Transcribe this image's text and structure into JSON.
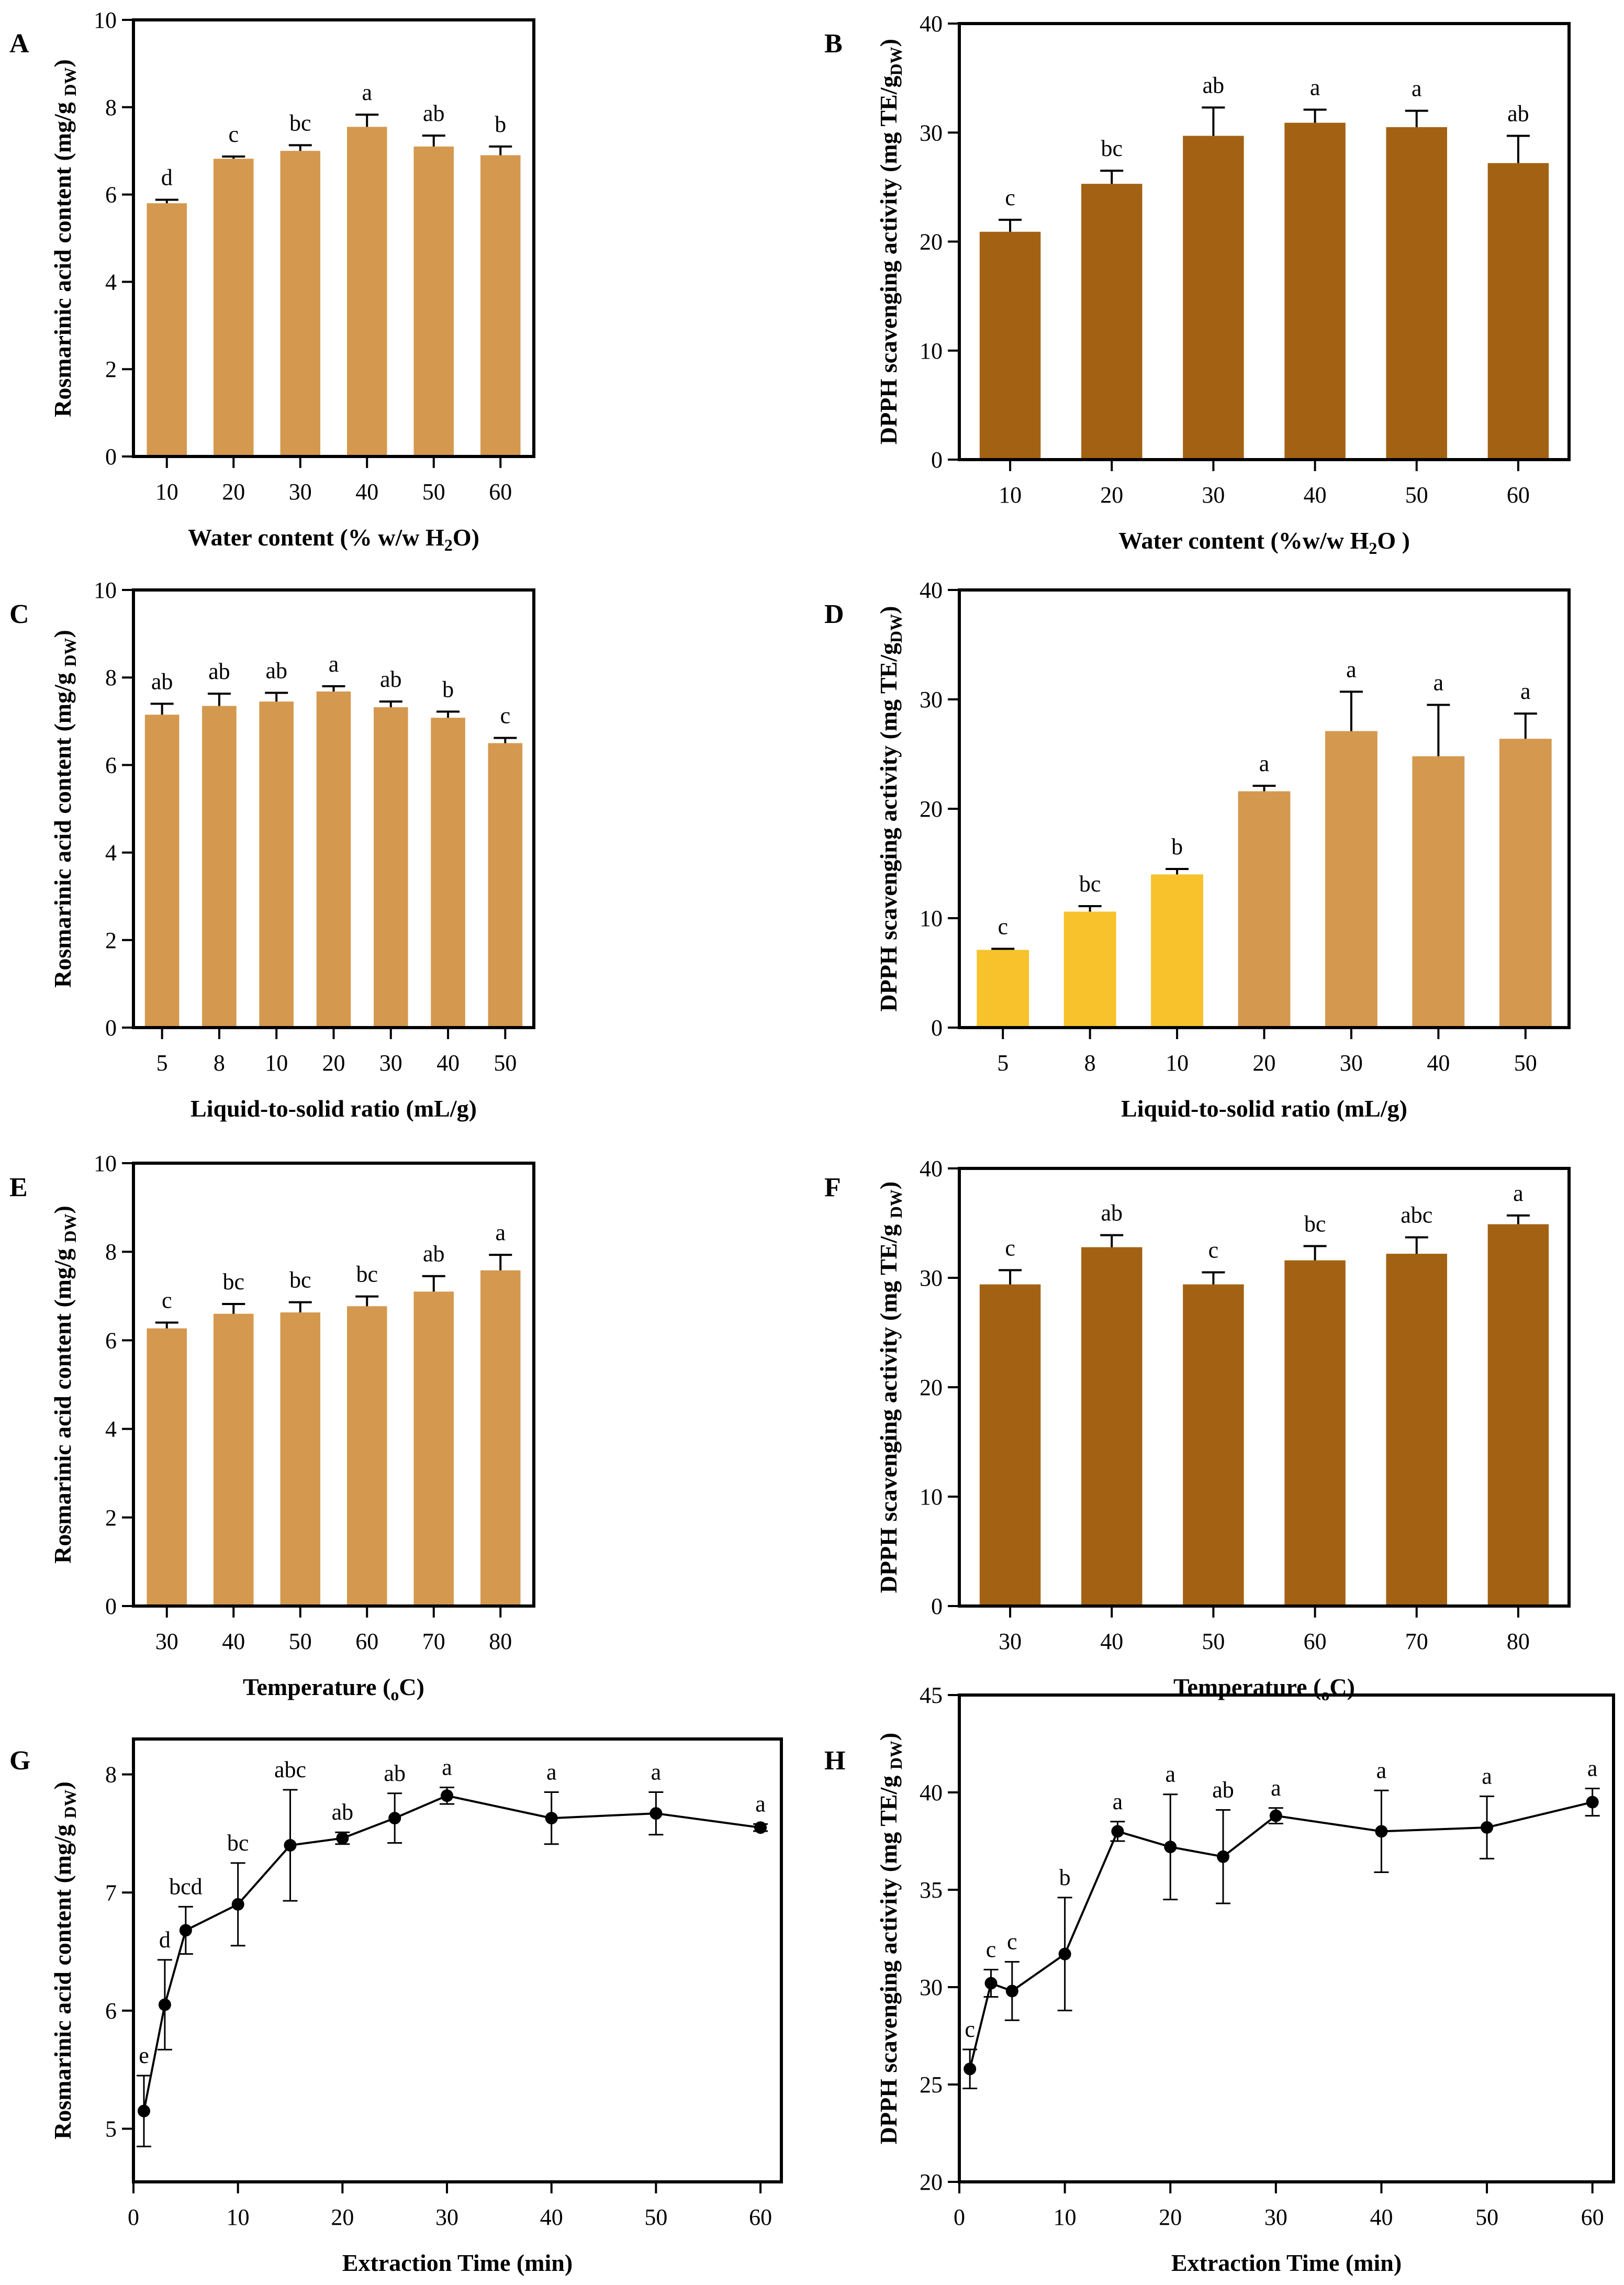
{
  "figure": {
    "colors": {
      "light_brown": "#D4984E",
      "dark_brown": "#A36213",
      "yellow": "#F7C22B",
      "line": "#000000"
    },
    "chart_data": [
      {
        "id": "A",
        "letter": "A",
        "type": "bar",
        "categories": [
          "10",
          "20",
          "30",
          "40",
          "50",
          "60"
        ],
        "values": [
          5.8,
          6.82,
          7.0,
          7.55,
          7.1,
          6.9
        ],
        "errors": [
          0.08,
          0.05,
          0.13,
          0.28,
          0.25,
          0.2
        ],
        "labels": [
          "d",
          "c",
          "bc",
          "a",
          "ab",
          "b"
        ],
        "bar_colors": [
          "light_brown",
          "light_brown",
          "light_brown",
          "light_brown",
          "light_brown",
          "light_brown"
        ],
        "title": "",
        "xlabel": [
          "Water content (% w/w H",
          "2",
          "O)"
        ],
        "ylabel": [
          "Rosmarinic acid content (mg/g ",
          "DW",
          ")"
        ],
        "ylim": [
          0,
          10
        ],
        "yticks": [
          0,
          2,
          4,
          6,
          8,
          10
        ],
        "yticklabels": [
          "0",
          "2",
          "4",
          "6",
          "8",
          "10"
        ]
      },
      {
        "id": "B",
        "letter": "B",
        "type": "bar",
        "categories": [
          "10",
          "20",
          "30",
          "40",
          "50",
          "60"
        ],
        "values": [
          20.9,
          25.3,
          29.7,
          30.9,
          30.5,
          27.2
        ],
        "errors": [
          1.1,
          1.2,
          2.6,
          1.2,
          1.5,
          2.5
        ],
        "labels": [
          "c",
          "bc",
          "ab",
          "a",
          "a",
          "ab"
        ],
        "bar_colors": [
          "dark_brown",
          "dark_brown",
          "dark_brown",
          "dark_brown",
          "dark_brown",
          "dark_brown"
        ],
        "title": "",
        "xlabel": [
          "Water content (%w/w H",
          "2",
          "O )"
        ],
        "ylabel": [
          "DPPH  scavenging activity (mg TE/g",
          "DW",
          ")"
        ],
        "ylim": [
          0,
          40
        ],
        "yticks": [
          0,
          10,
          20,
          30,
          40
        ],
        "yticklabels": [
          "0",
          "10",
          "20",
          "30",
          "40"
        ]
      },
      {
        "id": "C",
        "letter": "C",
        "type": "bar",
        "categories": [
          "5",
          "8",
          "10",
          "20",
          "30",
          "40",
          "50"
        ],
        "values": [
          7.15,
          7.35,
          7.45,
          7.68,
          7.32,
          7.08,
          6.5
        ],
        "errors": [
          0.25,
          0.28,
          0.2,
          0.12,
          0.13,
          0.14,
          0.12
        ],
        "labels": [
          "ab",
          "ab",
          "ab",
          "a",
          "ab",
          "b",
          "c"
        ],
        "bar_colors": [
          "light_brown",
          "light_brown",
          "light_brown",
          "light_brown",
          "light_brown",
          "light_brown",
          "light_brown"
        ],
        "title": "",
        "xlabel": [
          "Liquid-to-solid ratio (mL/g)",
          "",
          ""
        ],
        "ylabel": [
          "Rosmarinic acid content (mg/g ",
          "DW",
          ")"
        ],
        "ylim": [
          0,
          10
        ],
        "yticks": [
          0,
          2,
          4,
          6,
          8,
          10
        ],
        "yticklabels": [
          "0",
          "2",
          "4",
          "6",
          "8",
          "10"
        ]
      },
      {
        "id": "D",
        "letter": "D",
        "type": "bar",
        "categories": [
          "5",
          "8",
          "10",
          "20",
          "30",
          "40",
          "50"
        ],
        "values": [
          7.1,
          10.6,
          14.0,
          21.6,
          27.1,
          24.8,
          26.4
        ],
        "errors": [
          0.1,
          0.5,
          0.5,
          0.5,
          3.6,
          4.7,
          2.3
        ],
        "labels": [
          "c",
          "bc",
          "b",
          "a",
          "a",
          "a",
          "a"
        ],
        "bar_colors": [
          "yellow",
          "yellow",
          "yellow",
          "light_brown",
          "light_brown",
          "light_brown",
          "light_brown"
        ],
        "title": "",
        "xlabel": [
          "Liquid-to-solid ratio (mL/g)",
          "",
          ""
        ],
        "ylabel": [
          "DPPH  scavenging activity (mg TE/g",
          "DW",
          ")"
        ],
        "ylim": [
          0,
          40
        ],
        "yticks": [
          0,
          10,
          20,
          30,
          40
        ],
        "yticklabels": [
          "0",
          "10",
          "20",
          "30",
          "40"
        ]
      },
      {
        "id": "E",
        "letter": "E",
        "type": "bar",
        "categories": [
          "30",
          "40",
          "50",
          "60",
          "70",
          "80"
        ],
        "values": [
          6.27,
          6.6,
          6.63,
          6.77,
          7.1,
          7.58
        ],
        "errors": [
          0.13,
          0.22,
          0.23,
          0.22,
          0.35,
          0.35
        ],
        "labels": [
          "c",
          "bc",
          "bc",
          "bc",
          "ab",
          "a"
        ],
        "bar_colors": [
          "light_brown",
          "light_brown",
          "light_brown",
          "light_brown",
          "light_brown",
          "light_brown"
        ],
        "title": "",
        "xlabel": [
          "Temperature (",
          "o",
          "C)"
        ],
        "ylabel": [
          "Rosmarinic acid content (mg/g ",
          "DW",
          ")"
        ],
        "ylim": [
          0,
          10
        ],
        "yticks": [
          0,
          2,
          4,
          6,
          8,
          10
        ],
        "yticklabels": [
          "0",
          "2",
          "4",
          "6",
          "8",
          "10"
        ]
      },
      {
        "id": "F",
        "letter": "F",
        "type": "bar",
        "categories": [
          "30",
          "40",
          "50",
          "60",
          "70",
          "80"
        ],
        "values": [
          29.4,
          32.8,
          29.4,
          31.6,
          32.2,
          34.9
        ],
        "errors": [
          1.3,
          1.1,
          1.1,
          1.3,
          1.5,
          0.8
        ],
        "labels": [
          "c",
          "ab",
          "c",
          "bc",
          "abc",
          "a"
        ],
        "bar_colors": [
          "dark_brown",
          "dark_brown",
          "dark_brown",
          "dark_brown",
          "dark_brown",
          "dark_brown"
        ],
        "title": "",
        "xlabel": [
          "Temperature (",
          "o",
          "C)"
        ],
        "ylabel": [
          "DPPH  scavenging activity (mg TE/g ",
          "DW",
          ")"
        ],
        "ylim": [
          0,
          40
        ],
        "yticks": [
          0,
          10,
          20,
          30,
          40
        ],
        "yticklabels": [
          "0",
          "10",
          "20",
          "30",
          "40"
        ]
      },
      {
        "id": "G",
        "letter": "G",
        "type": "line",
        "x": [
          1,
          3,
          5,
          10,
          15,
          20,
          25,
          30,
          40,
          50,
          60
        ],
        "values": [
          5.15,
          6.05,
          6.68,
          6.9,
          7.4,
          7.46,
          7.63,
          7.82,
          7.63,
          7.67,
          7.55
        ],
        "errors": [
          0.3,
          0.38,
          0.2,
          0.35,
          0.47,
          0.05,
          0.21,
          0.07,
          0.22,
          0.18,
          0.03
        ],
        "labels": [
          "e",
          "d",
          "bcd",
          "bc",
          "abc",
          "ab",
          "ab",
          "a",
          "a",
          "a",
          "a"
        ],
        "title": "",
        "xlabel": [
          "Extraction Time (min)",
          "",
          ""
        ],
        "ylabel": [
          "Rosmarinic acid content (mg/g ",
          "DW",
          ")"
        ],
        "xlim": [
          0,
          62
        ],
        "xticks": [
          0,
          10,
          20,
          30,
          40,
          50,
          60
        ],
        "xticklabels": [
          "0",
          "10",
          "20",
          "30",
          "40",
          "50",
          "60"
        ],
        "ylim": [
          4.55,
          8.3
        ],
        "yticks": [
          5,
          6,
          7,
          8
        ],
        "yticklabels": [
          "5",
          "6",
          "7",
          "8"
        ]
      },
      {
        "id": "H",
        "letter": "H",
        "type": "line",
        "x": [
          1,
          3,
          5,
          10,
          15,
          20,
          25,
          30,
          40,
          50,
          60
        ],
        "values": [
          25.8,
          30.2,
          29.8,
          31.7,
          38.0,
          37.2,
          36.7,
          38.8,
          38.0,
          38.2,
          39.5
        ],
        "errors": [
          1.0,
          0.7,
          1.5,
          2.9,
          0.5,
          2.7,
          2.4,
          0.4,
          2.1,
          1.6,
          0.7
        ],
        "labels": [
          "c",
          "c",
          "c",
          "b",
          "a",
          "a",
          "ab",
          "a",
          "a",
          "a",
          "a"
        ],
        "title": "",
        "xlabel": [
          "Extraction Time (min)",
          "",
          ""
        ],
        "ylabel": [
          "DPPH  scavenging activity (mg TE/g ",
          "DW",
          ")"
        ],
        "xlim": [
          0,
          62
        ],
        "xticks": [
          0,
          10,
          20,
          30,
          40,
          50,
          60
        ],
        "xticklabels": [
          "0",
          "10",
          "20",
          "30",
          "40",
          "50",
          "60"
        ],
        "ylim": [
          20,
          45
        ],
        "yticks": [
          20,
          25,
          30,
          35,
          40,
          45
        ],
        "yticklabels": [
          "20",
          "25",
          "30",
          "35",
          "40",
          "45"
        ]
      }
    ]
  }
}
